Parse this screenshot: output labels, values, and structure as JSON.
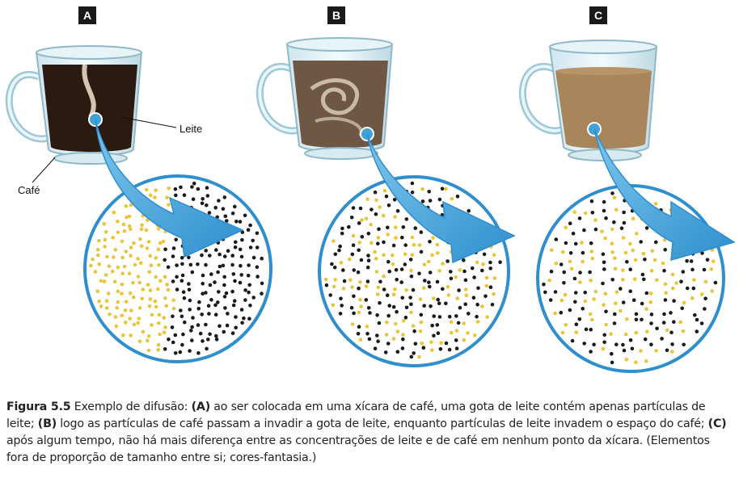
{
  "panels": [
    {
      "tag": "A"
    },
    {
      "tag": "B"
    },
    {
      "tag": "C"
    }
  ],
  "labels": {
    "leite": "Leite",
    "cafe": "Café"
  },
  "caption": {
    "figure": "Figura 5.5",
    "text_1": " Exemplo de difusão: ",
    "a": "(A)",
    "text_2": " ao ser colocada em uma xícara de café, uma gota de leite contém apenas partículas de leite; ",
    "b": "(B)",
    "text_3": " logo as partículas de café passam a invadir a gota de leite, enquanto partículas de leite invadem o espaço do café; ",
    "c": "(C)",
    "text_4": " após algum tempo, não há mais diferença entre as concentrações de leite e de café em nenhum ponto da xícara. (Elementos fora de proporção de tamanho entre si; cores-fantasia.)"
  },
  "colors": {
    "milk_particle": "#e8c53a",
    "coffee_particle": "#1b1b1b",
    "arrow": "#3fa3d8",
    "circle_border": "#2f8fce",
    "coffee_a": "#2a1a10",
    "coffee_b": "#6e5845",
    "coffee_c": "#a8865c"
  }
}
